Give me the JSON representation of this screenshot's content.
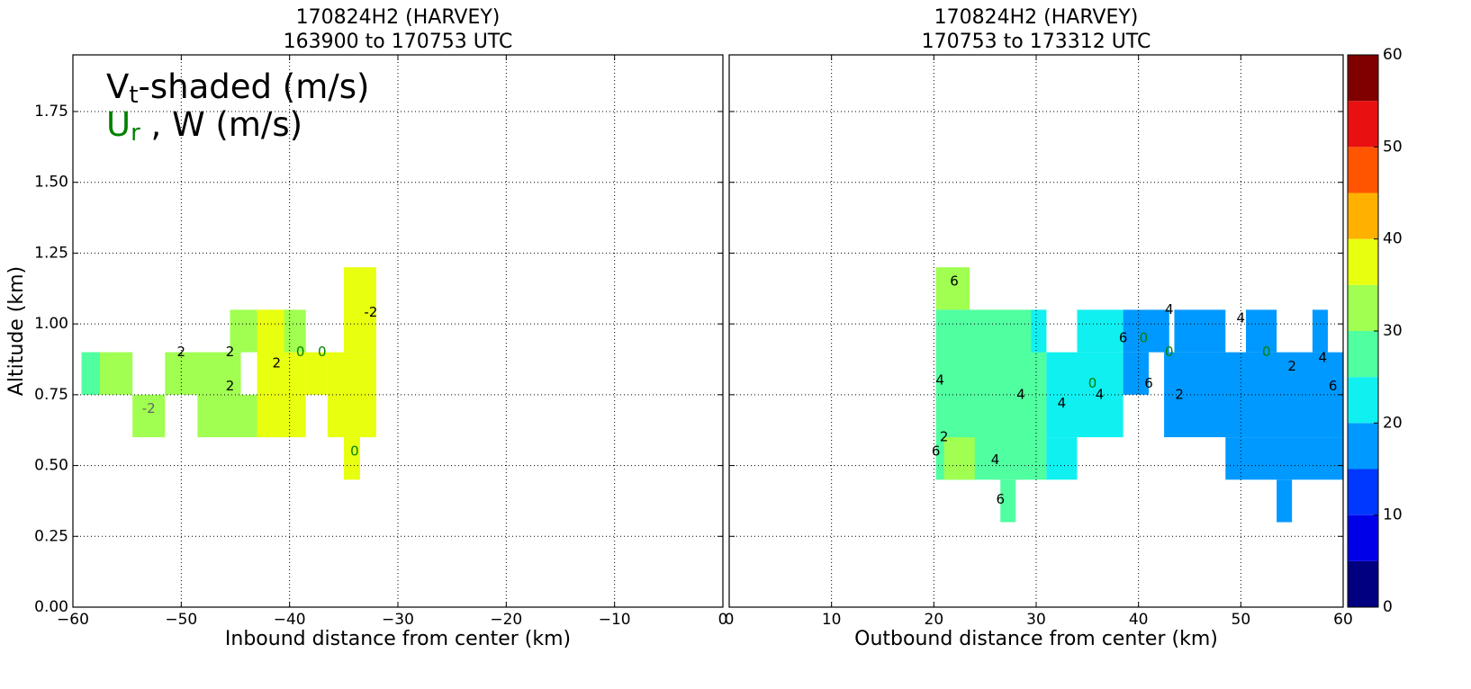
{
  "chart_data": [
    {
      "type": "heatmap",
      "title": "170824H2 (HARVEY)",
      "subtitle": "163900 to 170753 UTC",
      "x_label": "Inbound distance from center (km)",
      "y_label": "Altitude (km)",
      "legend_text": [
        [
          "V",
          "t",
          "-shaded (m/s)",
          "#000000"
        ],
        [
          "U",
          "r",
          " , W (m/s)",
          "#008000"
        ]
      ],
      "xlim": [
        -60,
        0
      ],
      "ylim": [
        0,
        1.95
      ],
      "grid": true,
      "xticks": [
        {
          "value": -60,
          "label": "−60"
        },
        {
          "value": -50,
          "label": "−50"
        },
        {
          "value": -40,
          "label": "−40"
        },
        {
          "value": -30,
          "label": "−30"
        },
        {
          "value": -20,
          "label": "−20"
        },
        {
          "value": -10,
          "label": "−10"
        },
        0
      ],
      "yticks": [
        {
          "value": 0,
          "label": "0.00"
        },
        {
          "value": 0.25,
          "label": "0.25"
        },
        {
          "value": 0.5,
          "label": "0.50"
        },
        {
          "value": 0.75,
          "label": "0.75"
        },
        {
          "value": 1,
          "label": "1.00"
        },
        {
          "value": 1.25,
          "label": "1.25"
        },
        {
          "value": 1.5,
          "label": "1.50"
        },
        {
          "value": 1.75,
          "label": "1.75"
        }
      ],
      "cells": [
        {
          "x0": -59.2,
          "x1": -54.5,
          "y0": 0.75,
          "y1": 0.9,
          "value": 32
        },
        {
          "x0": -59.2,
          "x1": -57.5,
          "y0": 0.75,
          "y1": 0.9,
          "value": 28
        },
        {
          "x0": -54.5,
          "x1": -51.5,
          "y0": 0.6,
          "y1": 0.75,
          "value": 32
        },
        {
          "x0": -51.5,
          "x1": -44.5,
          "y0": 0.75,
          "y1": 0.9,
          "value": 32
        },
        {
          "x0": -48.5,
          "x1": -40,
          "y0": 0.6,
          "y1": 0.75,
          "value": 32
        },
        {
          "x0": -45.5,
          "x1": -43,
          "y0": 0.9,
          "y1": 1.05,
          "value": 32
        },
        {
          "x0": -43,
          "x1": -40,
          "y0": 0.6,
          "y1": 1.05,
          "value": 37
        },
        {
          "x0": -40,
          "x1": -38.5,
          "y0": 0.6,
          "y1": 0.9,
          "value": 37
        },
        {
          "x0": -40.5,
          "x1": -38.5,
          "y0": 0.9,
          "y1": 1.05,
          "value": 32
        },
        {
          "x0": -38.5,
          "x1": -36.5,
          "y0": 0.75,
          "y1": 0.9,
          "value": 37
        },
        {
          "x0": -36.5,
          "x1": -32,
          "y0": 0.6,
          "y1": 0.9,
          "value": 37
        },
        {
          "x0": -35,
          "x1": -32,
          "y0": 0.9,
          "y1": 1.2,
          "value": 37
        },
        {
          "x0": -35,
          "x1": -33.5,
          "y0": 0.45,
          "y1": 0.6,
          "value": 37
        }
      ],
      "contour_labels": [
        {
          "x": -53,
          "y": 0.7,
          "value": -2,
          "color": "#666666"
        },
        {
          "x": -50,
          "y": 0.9,
          "value": 2,
          "color": "#000000"
        },
        {
          "x": -45.5,
          "y": 0.9,
          "value": 2,
          "color": "#000000"
        },
        {
          "x": -45.5,
          "y": 0.78,
          "value": 2,
          "color": "#000000"
        },
        {
          "x": -41.2,
          "y": 0.86,
          "value": 2,
          "color": "#000000"
        },
        {
          "x": -39,
          "y": 0.9,
          "value": 0,
          "color": "#008000"
        },
        {
          "x": -37,
          "y": 0.9,
          "value": 0,
          "color": "#008000"
        },
        {
          "x": -32.5,
          "y": 1.04,
          "value": -2,
          "color": "#000000"
        },
        {
          "x": -34,
          "y": 0.55,
          "value": 0,
          "color": "#008000"
        }
      ]
    },
    {
      "type": "heatmap",
      "title": "170824H2 (HARVEY)",
      "subtitle": "170753 to 173312 UTC",
      "x_label": "Outbound distance from center (km)",
      "xlim": [
        0,
        60
      ],
      "ylim": [
        0,
        1.95
      ],
      "grid": true,
      "xticks": [
        0,
        10,
        20,
        30,
        40,
        50,
        60
      ],
      "yticks": [
        0,
        0.25,
        0.5,
        0.75,
        1,
        1.25,
        1.5,
        1.75
      ],
      "cells": [
        {
          "x0": 20.2,
          "x1": 23.5,
          "y0": 1.05,
          "y1": 1.2,
          "value": 32
        },
        {
          "x0": 20.2,
          "x1": 31,
          "y0": 0.45,
          "y1": 1.05,
          "value": 28
        },
        {
          "x0": 21,
          "x1": 24,
          "y0": 0.45,
          "y1": 0.6,
          "value": 32
        },
        {
          "x0": 26.5,
          "x1": 28,
          "y0": 0.3,
          "y1": 0.45,
          "value": 28
        },
        {
          "x0": 29.5,
          "x1": 31,
          "y0": 0.9,
          "y1": 1.05,
          "value": 22
        },
        {
          "x0": 31,
          "x1": 38.5,
          "y0": 0.6,
          "y1": 0.9,
          "value": 22
        },
        {
          "x0": 34,
          "x1": 38.5,
          "y0": 0.9,
          "y1": 1.05,
          "value": 22
        },
        {
          "x0": 31,
          "x1": 34,
          "y0": 0.45,
          "y1": 0.6,
          "value": 22
        },
        {
          "x0": 38.5,
          "x1": 43,
          "y0": 0.9,
          "y1": 1.05,
          "value": 17
        },
        {
          "x0": 38.5,
          "x1": 41,
          "y0": 0.75,
          "y1": 0.9,
          "value": 17
        },
        {
          "x0": 43.5,
          "x1": 48.5,
          "y0": 0.9,
          "y1": 1.05,
          "value": 17
        },
        {
          "x0": 42.5,
          "x1": 60,
          "y0": 0.6,
          "y1": 0.9,
          "value": 17
        },
        {
          "x0": 48.5,
          "x1": 60,
          "y0": 0.45,
          "y1": 0.6,
          "value": 17
        },
        {
          "x0": 50.5,
          "x1": 53.5,
          "y0": 0.9,
          "y1": 1.05,
          "value": 17
        },
        {
          "x0": 57,
          "x1": 58.5,
          "y0": 0.9,
          "y1": 1.05,
          "value": 17
        },
        {
          "x0": 53.5,
          "x1": 55,
          "y0": 0.3,
          "y1": 0.45,
          "value": 17
        }
      ],
      "contour_labels": [
        {
          "x": 22,
          "y": 1.15,
          "value": 6,
          "color": "#000000"
        },
        {
          "x": 20.6,
          "y": 0.8,
          "value": 4,
          "color": "#000000"
        },
        {
          "x": 21,
          "y": 0.6,
          "value": 2,
          "color": "#000000"
        },
        {
          "x": 20.2,
          "y": 0.55,
          "value": 6,
          "color": "#000000"
        },
        {
          "x": 26,
          "y": 0.52,
          "value": 4,
          "color": "#000000"
        },
        {
          "x": 26.5,
          "y": 0.38,
          "value": 6,
          "color": "#000000"
        },
        {
          "x": 28.5,
          "y": 0.75,
          "value": 4,
          "color": "#000000"
        },
        {
          "x": 32.5,
          "y": 0.72,
          "value": 4,
          "color": "#000000"
        },
        {
          "x": 35.5,
          "y": 0.79,
          "value": 0,
          "color": "#008000"
        },
        {
          "x": 36.2,
          "y": 0.75,
          "value": 4,
          "color": "#000000"
        },
        {
          "x": 38.5,
          "y": 0.95,
          "value": 6,
          "color": "#000000"
        },
        {
          "x": 40.5,
          "y": 0.95,
          "value": 0,
          "color": "#008000"
        },
        {
          "x": 43,
          "y": 0.9,
          "value": 0,
          "color": "#008000"
        },
        {
          "x": 43,
          "y": 1.05,
          "value": 4,
          "color": "#000000"
        },
        {
          "x": 41,
          "y": 0.79,
          "value": 6,
          "color": "#000000"
        },
        {
          "x": 44,
          "y": 0.75,
          "value": 2,
          "color": "#000000"
        },
        {
          "x": 50,
          "y": 1.02,
          "value": 4,
          "color": "#000000"
        },
        {
          "x": 52.5,
          "y": 0.9,
          "value": 0,
          "color": "#008000"
        },
        {
          "x": 55,
          "y": 0.85,
          "value": 2,
          "color": "#000000"
        },
        {
          "x": 58,
          "y": 0.88,
          "value": 4,
          "color": "#000000"
        },
        {
          "x": 59,
          "y": 0.78,
          "value": 6,
          "color": "#000000"
        }
      ],
      "colorbar": {
        "levels": [
          0,
          5,
          10,
          15,
          20,
          25,
          30,
          35,
          40,
          45,
          50,
          55,
          60
        ],
        "colors": [
          "#000080",
          "#0000e8",
          "#0038ff",
          "#0099ff",
          "#10f0f0",
          "#50ffa0",
          "#a0ff50",
          "#e8ff10",
          "#ffb000",
          "#ff5500",
          "#e81010",
          "#800000"
        ],
        "ticks": [
          0,
          10,
          20,
          30,
          40,
          50,
          60
        ]
      }
    }
  ]
}
